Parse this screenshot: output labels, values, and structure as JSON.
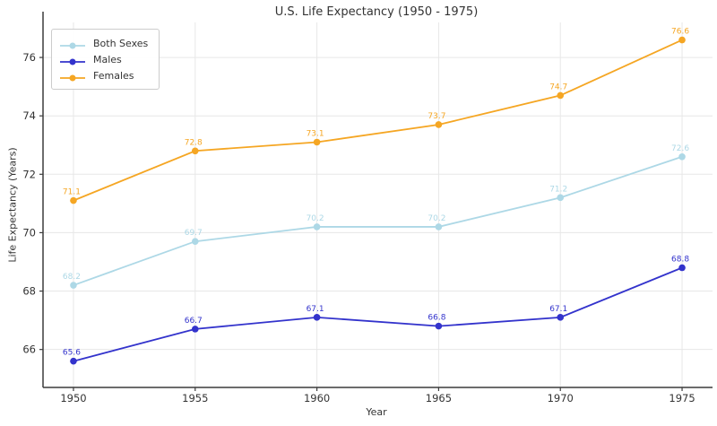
{
  "title": "U.S. Life Expectancy (1950 - 1975)",
  "chart_data": {
    "type": "line",
    "title": "U.S. Life Expectancy (1950 - 1975)",
    "xlabel": "Year",
    "ylabel": "Life Expectancy (Years)",
    "x": [
      1950,
      1955,
      1960,
      1965,
      1970,
      1975
    ],
    "x_tick_labels": [
      "1950",
      "1955",
      "1960",
      "1965",
      "1970",
      "1975"
    ],
    "y_ticks": [
      66,
      68,
      70,
      72,
      74,
      76
    ],
    "xlim": [
      1948.75,
      1976.25
    ],
    "ylim": [
      64.7,
      77.2
    ],
    "grid": true,
    "legend_position": "upper-left",
    "point_labels_shown": true,
    "series": [
      {
        "name": "Both Sexes",
        "color": "#add8e6",
        "values": [
          68.2,
          69.7,
          70.2,
          70.2,
          71.2,
          72.6
        ]
      },
      {
        "name": "Males",
        "color": "#3333cc",
        "values": [
          65.6,
          66.7,
          67.1,
          66.8,
          67.1,
          68.8
        ]
      },
      {
        "name": "Females",
        "color": "#f5a623",
        "values": [
          71.1,
          72.8,
          73.1,
          73.7,
          74.7,
          76.6
        ]
      }
    ]
  },
  "colors": {
    "grid": "#e7e7e7",
    "spine": "#3c3c3c",
    "tick_label": "#333333",
    "title": "#333333"
  }
}
